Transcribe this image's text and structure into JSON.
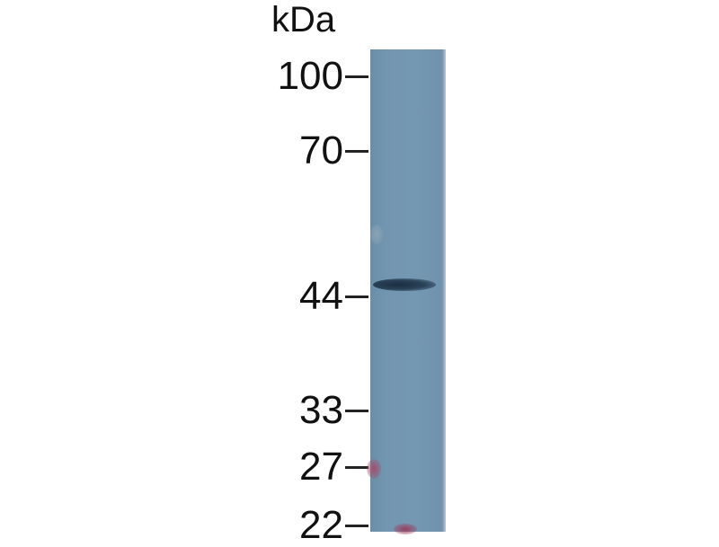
{
  "unit_label": "kDa",
  "markers": [
    {
      "label": "100",
      "kda": 100
    },
    {
      "label": "70",
      "kda": 70
    },
    {
      "label": "44",
      "kda": 44
    },
    {
      "label": "33",
      "kda": 33
    },
    {
      "label": "27",
      "kda": 27
    },
    {
      "label": "22",
      "kda": 22
    }
  ],
  "lane_color": "#7396b0",
  "band": {
    "kda": 45,
    "color": "#1e3347"
  }
}
